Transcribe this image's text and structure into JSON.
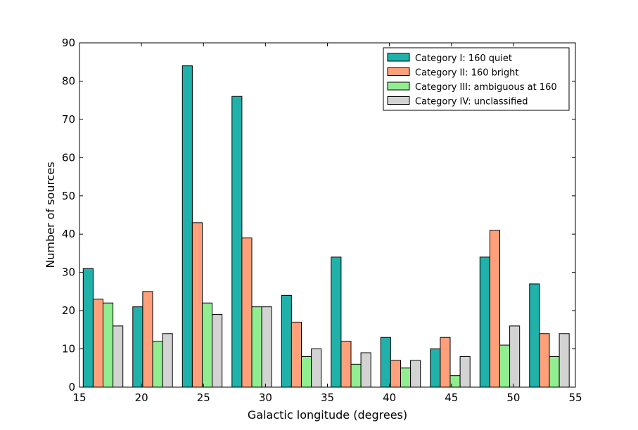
{
  "chart_data": {
    "type": "bar",
    "title": "",
    "xlabel": "Galactic longitude (degrees)",
    "ylabel": "Number of sources",
    "xlim": [
      15,
      55
    ],
    "ylim": [
      0,
      90
    ],
    "xticks": [
      15,
      20,
      25,
      30,
      35,
      40,
      45,
      50,
      55
    ],
    "yticks": [
      0,
      10,
      20,
      30,
      40,
      50,
      60,
      70,
      80,
      90
    ],
    "bin_edges": [
      15.3,
      19.3,
      23.3,
      27.3,
      31.3,
      35.3,
      39.3,
      43.3,
      47.3,
      51.3,
      55.3
    ],
    "grid": false,
    "legend_position": "top-right",
    "series": [
      {
        "name": "Category I: 160 quiet",
        "color": "#20b2aa",
        "values": [
          31,
          21,
          84,
          76,
          24,
          34,
          13,
          10,
          34,
          27
        ]
      },
      {
        "name": "Category II: 160 bright",
        "color": "#ffa07a",
        "values": [
          23,
          25,
          43,
          39,
          17,
          12,
          7,
          13,
          41,
          14
        ]
      },
      {
        "name": "Category III: ambiguous at 160",
        "color": "#90ee90",
        "values": [
          22,
          12,
          22,
          21,
          8,
          6,
          5,
          3,
          11,
          8
        ]
      },
      {
        "name": "Category IV: unclassified",
        "color": "#d3d3d3",
        "values": [
          16,
          14,
          19,
          21,
          10,
          9,
          7,
          8,
          16,
          14
        ]
      }
    ]
  }
}
